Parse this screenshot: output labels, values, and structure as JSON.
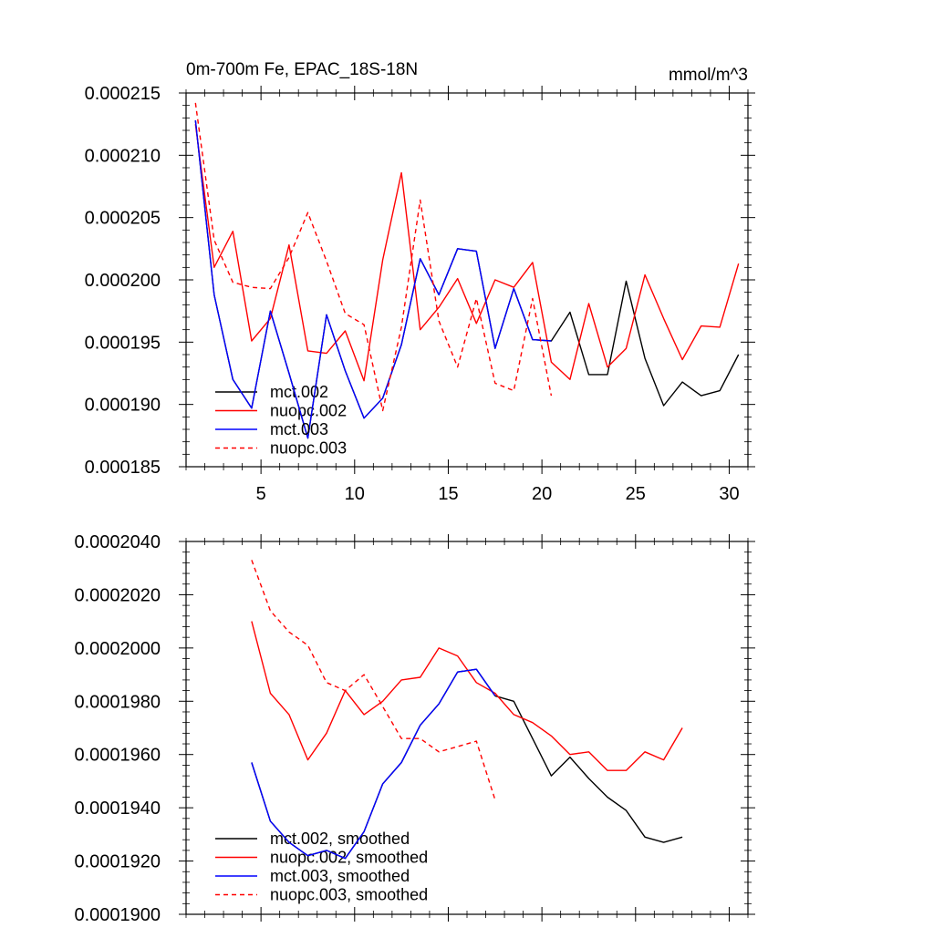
{
  "chart_data": [
    {
      "type": "line",
      "title": "0m-700m Fe, EPAC_18S-18N",
      "units_label": "mmol/m^3",
      "xlim": [
        1,
        31
      ],
      "ylim": [
        0.000185,
        0.000215
      ],
      "x_ticks": [
        5,
        10,
        15,
        20,
        25,
        30
      ],
      "x_tick_labels": [
        "5",
        "10",
        "15",
        "20",
        "25",
        "30"
      ],
      "y_ticks": [
        0.000185,
        0.00019,
        0.000195,
        0.0002,
        0.000205,
        0.00021,
        0.000215
      ],
      "y_tick_labels": [
        "0.000185",
        "0.000190",
        "0.000195",
        "0.000200",
        "0.000205",
        "0.000210",
        "0.000215"
      ],
      "legend_position": "bottom-left",
      "series": [
        {
          "name": "mct.002",
          "color": "#000000",
          "dash": "solid",
          "x": [
            1.5,
            2.5,
            3.5,
            4.5,
            5.5,
            6.5,
            7.5,
            8.5,
            9.5,
            10.5,
            11.5,
            12.5,
            13.5,
            14.5,
            15.5,
            16.5,
            17.5,
            18.5,
            19.5,
            20.5,
            21.5,
            22.5,
            23.5,
            24.5,
            25.5,
            26.5,
            27.5,
            28.5,
            29.5,
            30.5
          ],
          "y": [
            0.0002128,
            0.0001988,
            0.000192,
            0.0001897,
            0.0001975,
            0.0001925,
            0.0001873,
            0.0001972,
            0.0001927,
            0.0001889,
            0.0001905,
            0.0001948,
            0.0002017,
            0.0001988,
            0.0002025,
            0.0002023,
            0.0001945,
            0.0001993,
            0.0001952,
            0.0001951,
            0.0001974,
            0.0001924,
            0.0001924,
            0.0001999,
            0.0001937,
            0.0001899,
            0.0001918,
            0.0001907,
            0.0001911,
            0.000194
          ]
        },
        {
          "name": "nuopc.002",
          "color": "#ff0000",
          "dash": "solid",
          "x": [
            1.5,
            2.5,
            3.5,
            4.5,
            5.5,
            6.5,
            7.5,
            8.5,
            9.5,
            10.5,
            11.5,
            12.5,
            13.5,
            14.5,
            15.5,
            16.5,
            17.5,
            18.5,
            19.5,
            20.5,
            21.5,
            22.5,
            23.5,
            24.5,
            25.5,
            26.5,
            27.5,
            28.5,
            29.5,
            30.5
          ],
          "y": [
            0.0002125,
            0.000201,
            0.0002039,
            0.0001951,
            0.0001969,
            0.0002028,
            0.0001943,
            0.0001941,
            0.0001959,
            0.0001919,
            0.0002016,
            0.0002086,
            0.000196,
            0.0001978,
            0.0002001,
            0.0001965,
            0.0002,
            0.0001994,
            0.0002014,
            0.0001934,
            0.000192,
            0.0001981,
            0.000193,
            0.0001945,
            0.0002004,
            0.0001969,
            0.0001936,
            0.0001963,
            0.0001962,
            0.0002013
          ]
        },
        {
          "name": "mct.003",
          "color": "#0000ff",
          "dash": "solid",
          "x": [
            1.5,
            2.5,
            3.5,
            4.5,
            5.5,
            6.5,
            7.5,
            8.5,
            9.5,
            10.5,
            11.5,
            12.5,
            13.5,
            14.5,
            15.5,
            16.5,
            17.5,
            18.5,
            19.5,
            20.5
          ],
          "y": [
            0.0002128,
            0.0001988,
            0.000192,
            0.0001897,
            0.0001975,
            0.0001925,
            0.0001873,
            0.0001972,
            0.0001927,
            0.0001889,
            0.0001905,
            0.0001948,
            0.0002017,
            0.0001988,
            0.0002025,
            0.0002023,
            0.0001945,
            0.0001993,
            0.0001952,
            0.0001951
          ]
        },
        {
          "name": "nuopc.003",
          "color": "#ff0000",
          "dash": "dashed",
          "x": [
            1.5,
            2.5,
            3.5,
            4.5,
            5.5,
            6.5,
            7.5,
            8.5,
            9.5,
            10.5,
            11.5,
            12.5,
            13.5,
            14.5,
            15.5,
            16.5,
            17.5,
            18.5,
            19.5,
            20.5
          ],
          "y": [
            0.0002142,
            0.0002032,
            0.0001998,
            0.0001994,
            0.0001993,
            0.0002018,
            0.0002054,
            0.0002015,
            0.0001973,
            0.0001964,
            0.0001895,
            0.0001962,
            0.0002064,
            0.0001967,
            0.000193,
            0.0001985,
            0.0001917,
            0.0001911,
            0.0001985,
            0.0001907
          ]
        }
      ]
    },
    {
      "type": "line",
      "xlim": [
        1,
        31
      ],
      "ylim": [
        0.00019,
        0.000204
      ],
      "x_ticks": [
        5,
        10,
        15,
        20,
        25,
        30
      ],
      "y_ticks": [
        0.00019,
        0.000192,
        0.000194,
        0.000196,
        0.000198,
        0.0002,
        0.000202,
        0.000204
      ],
      "y_tick_labels": [
        "0.0001900",
        "0.0001920",
        "0.0001940",
        "0.0001960",
        "0.0001980",
        "0.0002000",
        "0.0002020",
        "0.0002040"
      ],
      "legend_position": "bottom-left",
      "series": [
        {
          "name": "mct.002, smoothed",
          "color": "#000000",
          "dash": "solid",
          "x": [
            4.5,
            5.5,
            6.5,
            7.5,
            8.5,
            9.5,
            10.5,
            11.5,
            12.5,
            13.5,
            14.5,
            15.5,
            16.5,
            17.5,
            18.5,
            19.5,
            20.5,
            21.5,
            22.5,
            23.5,
            24.5,
            25.5,
            26.5,
            27.5
          ],
          "y": [
            0.0001957,
            0.0001935,
            0.0001927,
            0.0001922,
            0.0001924,
            0.0001921,
            0.0001931,
            0.0001949,
            0.0001957,
            0.0001971,
            0.0001979,
            0.0001991,
            0.0001992,
            0.0001982,
            0.000198,
            0.0001966,
            0.0001952,
            0.0001959,
            0.0001951,
            0.0001944,
            0.0001939,
            0.0001929,
            0.0001927,
            0.0001929
          ]
        },
        {
          "name": "nuopc.002, smoothed",
          "color": "#ff0000",
          "dash": "solid",
          "x": [
            4.5,
            5.5,
            6.5,
            7.5,
            8.5,
            9.5,
            10.5,
            11.5,
            12.5,
            13.5,
            14.5,
            15.5,
            16.5,
            17.5,
            18.5,
            19.5,
            20.5,
            21.5,
            22.5,
            23.5,
            24.5,
            25.5,
            26.5,
            27.5
          ],
          "y": [
            0.000201,
            0.0001983,
            0.0001975,
            0.0001958,
            0.0001968,
            0.0001984,
            0.0001975,
            0.000198,
            0.0001988,
            0.0001989,
            0.0002,
            0.0001997,
            0.0001987,
            0.0001983,
            0.0001975,
            0.0001972,
            0.0001967,
            0.000196,
            0.0001961,
            0.0001954,
            0.0001954,
            0.0001961,
            0.0001958,
            0.000197
          ]
        },
        {
          "name": "mct.003, smoothed",
          "color": "#0000ff",
          "dash": "solid",
          "x": [
            4.5,
            5.5,
            6.5,
            7.5,
            8.5,
            9.5,
            10.5,
            11.5,
            12.5,
            13.5,
            14.5,
            15.5,
            16.5,
            17.5
          ],
          "y": [
            0.0001957,
            0.0001935,
            0.0001927,
            0.0001922,
            0.0001924,
            0.0001921,
            0.0001931,
            0.0001949,
            0.0001957,
            0.0001971,
            0.0001979,
            0.0001991,
            0.0001992,
            0.0001982
          ]
        },
        {
          "name": "nuopc.003, smoothed",
          "color": "#ff0000",
          "dash": "dashed",
          "x": [
            4.5,
            5.5,
            6.5,
            7.5,
            8.5,
            9.5,
            10.5,
            11.5,
            12.5,
            13.5,
            14.5,
            15.5,
            16.5,
            17.5
          ],
          "y": [
            0.0002033,
            0.0002014,
            0.0002006,
            0.0002001,
            0.0001987,
            0.0001984,
            0.000199,
            0.0001978,
            0.0001966,
            0.0001966,
            0.0001961,
            0.0001963,
            0.0001965,
            0.0001943
          ]
        }
      ]
    }
  ]
}
